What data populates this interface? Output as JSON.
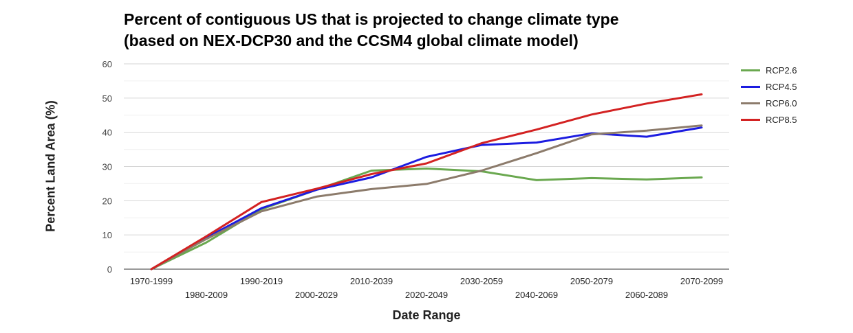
{
  "chart_data": {
    "type": "line",
    "title_line1": "Percent of contiguous US that is projected to change climate type",
    "title_line2": "(based on NEX-DCP30 and the CCSM4 global climate model)",
    "xlabel": "Date Range",
    "ylabel": "Percent Land Area (%)",
    "ylim": [
      0,
      60
    ],
    "yticks": [
      0,
      10,
      20,
      30,
      40,
      50,
      60
    ],
    "grid": true,
    "legend_position": "right",
    "categories": [
      "1970-1999",
      "1980-2009",
      "1990-2019",
      "2000-2029",
      "2010-2039",
      "2020-2049",
      "2030-2059",
      "2040-2069",
      "2050-2079",
      "2060-2089",
      "2070-2099"
    ],
    "series": [
      {
        "name": "RCP2.6",
        "color": "#6aa84f",
        "values": [
          0,
          7.8,
          17.5,
          23.2,
          28.8,
          29.4,
          28.6,
          26.0,
          26.6,
          26.2,
          26.8
        ]
      },
      {
        "name": "RCP4.5",
        "color": "#1c1ce0",
        "values": [
          0,
          9.2,
          17.8,
          23.2,
          26.8,
          32.8,
          36.3,
          37.0,
          39.7,
          38.7,
          41.4
        ]
      },
      {
        "name": "RCP6.0",
        "color": "#8c7b6b",
        "values": [
          0,
          8.8,
          16.9,
          21.2,
          23.4,
          24.9,
          28.8,
          33.9,
          39.4,
          40.5,
          42.0
        ]
      },
      {
        "name": "RCP8.5",
        "color": "#d32222",
        "values": [
          0,
          9.6,
          19.6,
          23.5,
          27.8,
          30.9,
          36.8,
          40.8,
          45.2,
          48.4,
          51.1
        ]
      }
    ]
  }
}
